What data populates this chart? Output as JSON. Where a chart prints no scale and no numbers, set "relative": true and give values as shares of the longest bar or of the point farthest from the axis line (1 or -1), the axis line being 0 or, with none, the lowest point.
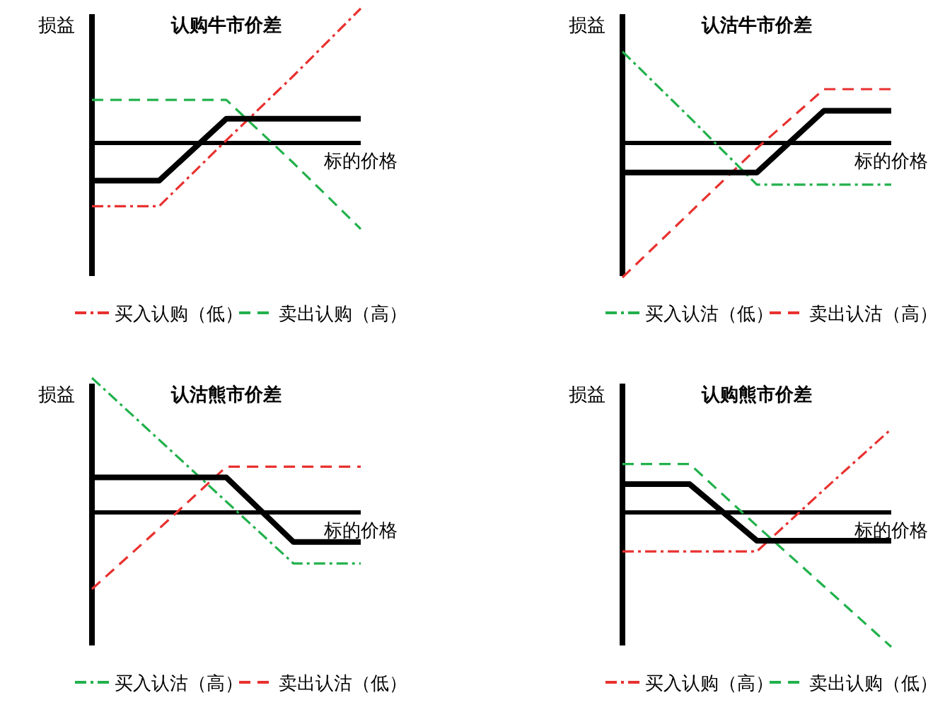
{
  "chart_data": [
    {
      "type": "line",
      "title": "认购牛市价差",
      "ylabel": "损益",
      "xlabel": "标的价格",
      "categories": [
        null,
        null,
        null,
        null,
        null
      ],
      "relative": true,
      "legend": "bottom",
      "series": [
        {
          "name": "买入认购（低）",
          "color": "#e8312f",
          "line_style": "dashdot",
          "values": [
            -0.47,
            -0.47,
            0.02,
            0.5,
            1
          ]
        },
        {
          "name": "卖出认购（高）",
          "color": "#22b14c",
          "line_style": "dashed",
          "values": [
            0.32,
            0.32,
            0.32,
            -0.15,
            -0.64
          ]
        },
        {
          "color": "#000000",
          "line_style": "solid",
          "values": [
            -0.28,
            -0.28,
            0.18,
            0.18,
            0.18
          ]
        }
      ]
    },
    {
      "type": "line",
      "title": "认沽牛市价差",
      "ylabel": "损益",
      "xlabel": "标的价格",
      "categories": [
        null,
        null,
        null,
        null,
        null
      ],
      "relative": true,
      "legend": "bottom",
      "series": [
        {
          "name": "买入认沽（低）",
          "color": "#22b14c",
          "line_style": "dashdot",
          "values": [
            0.68,
            0.19,
            -0.31,
            -0.31,
            -0.31
          ]
        },
        {
          "name": "卖出认沽（高）",
          "color": "#e8312f",
          "line_style": "dashed",
          "values": [
            -1,
            -0.52,
            -0.04,
            0.4,
            0.4
          ]
        },
        {
          "color": "#000000",
          "line_style": "solid",
          "values": [
            -0.22,
            -0.22,
            -0.22,
            0.24,
            0.24
          ]
        }
      ]
    },
    {
      "type": "line",
      "title": "认沽熊市价差",
      "ylabel": "损益",
      "xlabel": "标的价格",
      "categories": [
        null,
        null,
        null,
        null,
        null
      ],
      "relative": true,
      "legend": "bottom",
      "series": [
        {
          "name": "买入认沽（高）",
          "color": "#22b14c",
          "line_style": "dashdot",
          "values": [
            1,
            0.54,
            0.08,
            -0.38,
            -0.38
          ]
        },
        {
          "name": "卖出认沽（低）",
          "color": "#e8312f",
          "line_style": "dashed",
          "values": [
            -0.57,
            -0.12,
            0.34,
            0.34,
            0.34
          ]
        },
        {
          "color": "#000000",
          "line_style": "solid",
          "values": [
            0.26,
            0.26,
            0.26,
            -0.22,
            -0.22
          ]
        }
      ]
    },
    {
      "type": "line",
      "title": "认购熊市价差",
      "ylabel": "损益",
      "xlabel": "标的价格",
      "categories": [
        null,
        null,
        null,
        null,
        null
      ],
      "relative": true,
      "legend": "bottom",
      "series": [
        {
          "name": "买入认购（高）",
          "color": "#e8312f",
          "line_style": "dashdot",
          "values": [
            -0.29,
            -0.29,
            -0.29,
            0.17,
            0.62
          ]
        },
        {
          "name": "卖出认购（低）",
          "color": "#22b14c",
          "line_style": "dashed",
          "values": [
            0.36,
            0.36,
            -0.1,
            -0.55,
            -1
          ]
        },
        {
          "color": "#000000",
          "line_style": "solid",
          "values": [
            0.21,
            0.21,
            -0.21,
            -0.21,
            -0.21
          ]
        }
      ]
    }
  ]
}
